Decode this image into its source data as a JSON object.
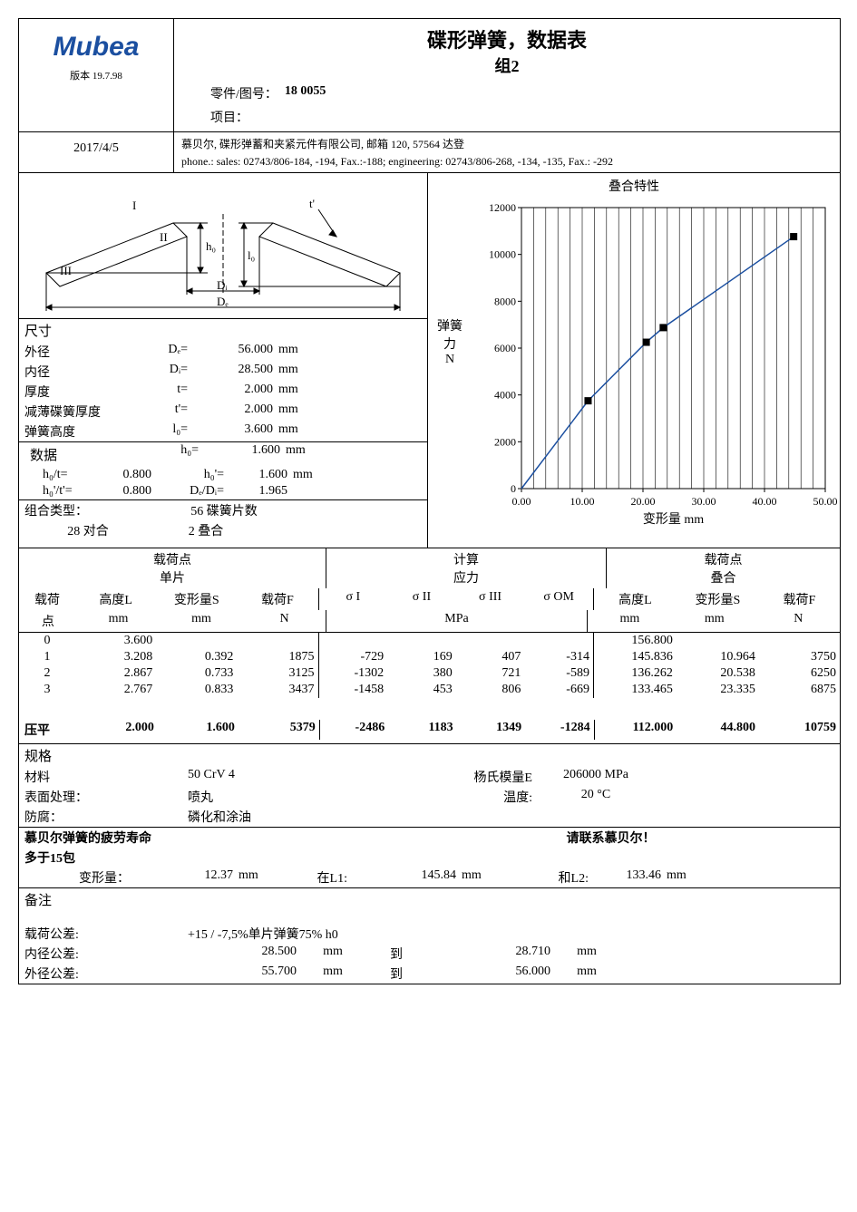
{
  "header": {
    "logo": "Mubea",
    "title": "碟形弹簧，数据表",
    "group": "组2",
    "version_label": "版本",
    "version": "19.7.98",
    "part_label": "零件/图号：",
    "part_no": "18  0055",
    "project_label": "项目：",
    "project": "",
    "date": "2017/4/5",
    "company": "慕贝尔, 碟形弹蓄和夹紧元件有限公司, 邮箱 120, 57564 达登",
    "contact": "phone.: sales: 02743/806-184, -194, Fax.:-188; engineering: 02743/806-268, -134, -135, Fax.: -292"
  },
  "diagram_labels": {
    "I": "I",
    "II": "II",
    "III": "III",
    "h0": "h₀",
    "l0": "l₀",
    "t": "t'",
    "Di": "Dᵢ",
    "De": "Dₑ"
  },
  "dims": {
    "head": "尺寸",
    "rows": [
      {
        "label": "外径",
        "sym": "Dₑ=",
        "val": "56.000",
        "unit": "mm"
      },
      {
        "label": "内径",
        "sym": "Dᵢ=",
        "val": "28.500",
        "unit": "mm"
      },
      {
        "label": "厚度",
        "sym": "t=",
        "val": "2.000",
        "unit": "mm"
      },
      {
        "label": "减薄碟簧厚度",
        "sym": "t'=",
        "val": "2.000",
        "unit": "mm"
      },
      {
        "label": "弹簧高度",
        "sym": "l₀=",
        "val": "3.600",
        "unit": "mm"
      }
    ]
  },
  "data": {
    "head": "数据",
    "top": {
      "sym": "h₀=",
      "val": "1.600",
      "unit": "mm"
    },
    "rows": [
      {
        "l1": "h₀/t=",
        "v1": "0.800",
        "l2": "h₀'=",
        "v2": "1.600",
        "u2": "mm"
      },
      {
        "l1": "h₀'/t'=",
        "v1": "0.800",
        "l2": "Dₑ/Dᵢ=",
        "v2": "1.965",
        "u2": ""
      }
    ]
  },
  "combo": {
    "head": "组合类型：",
    "pieces": "56 碟簧片数",
    "pairs_label": "28 对合",
    "stack_label": "2 叠合"
  },
  "chart": {
    "title": "叠合特性",
    "ylabel1": "弹簧",
    "ylabel2": "力",
    "yunit": "N",
    "xlabel": "变形量",
    "xunit": "mm",
    "xmin": 0,
    "xmax": 50,
    "xstep": 10,
    "ymin": 0,
    "ymax": 12000,
    "ystep": 2000,
    "xticks": [
      "0.00",
      "10.00",
      "20.00",
      "30.00",
      "40.00",
      "50.00"
    ],
    "yticks": [
      "0",
      "2000",
      "4000",
      "6000",
      "8000",
      "10000",
      "12000"
    ],
    "vline_step": 2,
    "points": [
      {
        "x": 10.964,
        "y": 3750
      },
      {
        "x": 20.538,
        "y": 6250
      },
      {
        "x": 23.335,
        "y": 6875
      },
      {
        "x": 44.8,
        "y": 10759
      }
    ],
    "colors": {
      "grid": "#000000",
      "line": "#1b4fa0",
      "marker": "#000000",
      "bg": "#ffffff"
    }
  },
  "load_table": {
    "group1_head1": "载荷点",
    "group1_head2": "单片",
    "group2_head1": "计算",
    "group2_head2": "应力",
    "group3_head1": "载荷点",
    "group3_head2": "叠合",
    "cols1": [
      "载荷",
      "高度L",
      "变形量S",
      "载荷F"
    ],
    "units1": [
      "点",
      "mm",
      "mm",
      "N"
    ],
    "cols2": [
      "σ I",
      "σ II",
      "σ III",
      "σ OM"
    ],
    "units2_mid": "MPa",
    "cols3": [
      "高度L",
      "变形量S",
      "载荷F"
    ],
    "units3": [
      "mm",
      "mm",
      "N"
    ],
    "rows": [
      {
        "p": "0",
        "L1": "3.600",
        "S1": "",
        "F1": "",
        "s1": "",
        "s2": "",
        "s3": "",
        "s4": "",
        "L2": "156.800",
        "S2": "",
        "F2": ""
      },
      {
        "p": "1",
        "L1": "3.208",
        "S1": "0.392",
        "F1": "1875",
        "s1": "-729",
        "s2": "169",
        "s3": "407",
        "s4": "-314",
        "L2": "145.836",
        "S2": "10.964",
        "F2": "3750"
      },
      {
        "p": "2",
        "L1": "2.867",
        "S1": "0.733",
        "F1": "3125",
        "s1": "-1302",
        "s2": "380",
        "s3": "721",
        "s4": "-589",
        "L2": "136.262",
        "S2": "20.538",
        "F2": "6250"
      },
      {
        "p": "3",
        "L1": "2.767",
        "S1": "0.833",
        "F1": "3437",
        "s1": "-1458",
        "s2": "453",
        "s3": "806",
        "s4": "-669",
        "L2": "133.465",
        "S2": "23.335",
        "F2": "6875"
      }
    ],
    "flat_label": "压平",
    "flat": {
      "L1": "2.000",
      "S1": "1.600",
      "F1": "5379",
      "s1": "-2486",
      "s2": "1183",
      "s3": "1349",
      "s4": "-1284",
      "L2": "112.000",
      "S2": "44.800",
      "F2": "10759"
    }
  },
  "spec": {
    "head": "规格",
    "material_label": "材料",
    "material": "50 CrV 4",
    "modulus_label": "杨氏模量E",
    "modulus": "206000 MPa",
    "surface_label": "表面处理：",
    "surface": "喷丸",
    "temp_label": "温度:",
    "temp": "20 °C",
    "corrosion_label": "防腐：",
    "corrosion": "磷化和涂油"
  },
  "fatigue": {
    "head": "慕贝尔弹簧的疲劳寿命",
    "contact": "请联系慕贝尔！",
    "more_than": "多于15包",
    "deform_label": "变形量：",
    "deform": "12.37",
    "deform_unit": "mm",
    "at_l1_label": "在L1:",
    "l1_val": "145.84",
    "l1_unit": "mm",
    "and_l2_label": "和L2:",
    "l2_val": "133.46",
    "l2_unit": "mm"
  },
  "notes": {
    "head": "备注",
    "load_tol_label": "载荷公差:",
    "load_tol": "+15 / -7,5%单片弹簧75% h0",
    "id_tol_label": "内径公差:",
    "id_low": "28.500",
    "id_to": "到",
    "id_high": "28.710",
    "unit": "mm",
    "od_tol_label": "外径公差:",
    "od_low": "55.700",
    "od_to": "到",
    "od_high": "56.000"
  }
}
